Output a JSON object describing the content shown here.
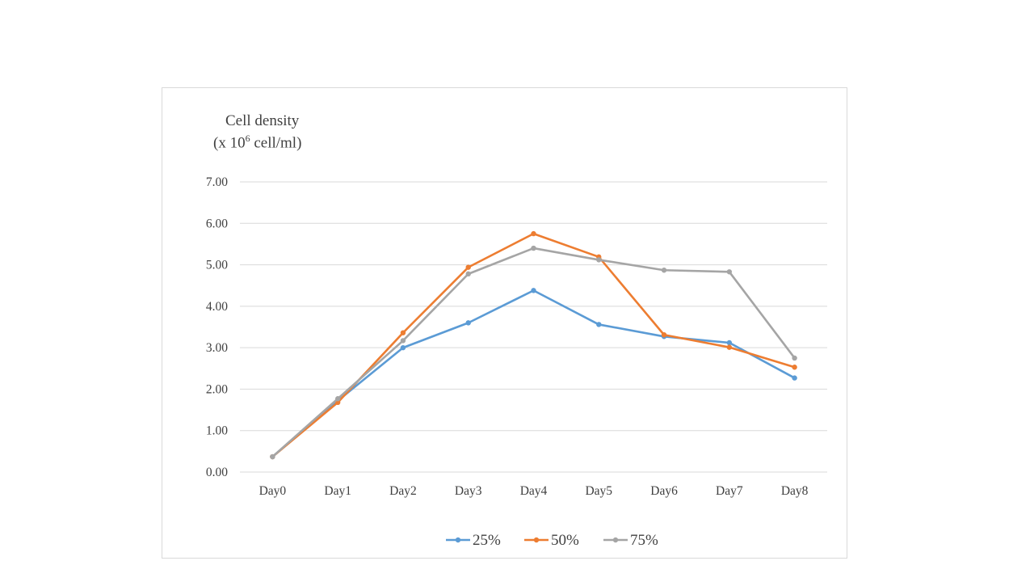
{
  "chart_data": {
    "type": "line",
    "ylabel": "Cell density",
    "ylabel_unit": {
      "prefix": "(x  10",
      "superscript": "6",
      "suffix": " cell/ml)"
    },
    "categories": [
      "Day0",
      "Day1",
      "Day2",
      "Day3",
      "Day4",
      "Day5",
      "Day6",
      "Day7",
      "Day8"
    ],
    "ylim": [
      0,
      7
    ],
    "yticks": [
      "0.00",
      "1.00",
      "2.00",
      "3.00",
      "4.00",
      "5.00",
      "6.00",
      "7.00"
    ],
    "grid": true,
    "legend_position": "bottom",
    "series": [
      {
        "name": "25%",
        "color": "#5B9BD5",
        "values": [
          0.37,
          1.72,
          3.0,
          3.6,
          4.38,
          3.56,
          3.27,
          3.12,
          2.27
        ]
      },
      {
        "name": "50%",
        "color": "#ED7D31",
        "values": [
          0.37,
          1.68,
          3.36,
          4.94,
          5.75,
          5.19,
          3.31,
          3.01,
          2.53
        ]
      },
      {
        "name": "75%",
        "color": "#A5A5A5",
        "values": [
          0.37,
          1.77,
          3.17,
          4.78,
          5.4,
          5.12,
          4.87,
          4.83,
          2.75
        ]
      }
    ]
  }
}
